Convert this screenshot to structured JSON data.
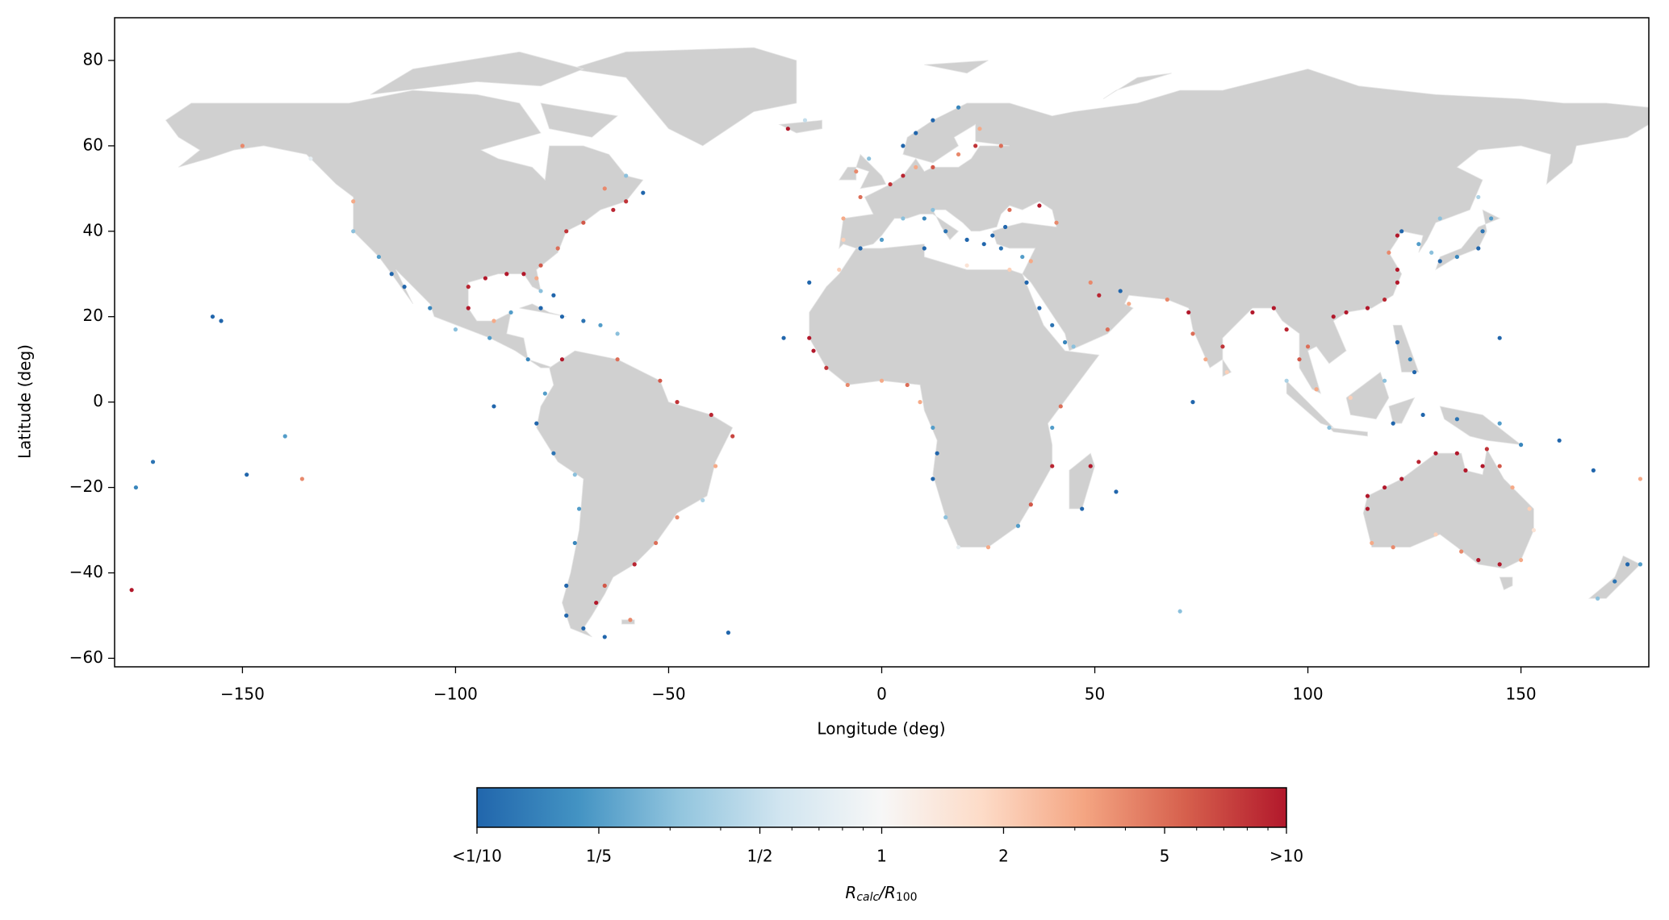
{
  "chart_data": {
    "type": "scatter",
    "xlabel": "Longitude (deg)",
    "ylabel": "Latitude (deg)",
    "xlim": [
      -180,
      180
    ],
    "ylim": [
      -62,
      90
    ],
    "xticks": [
      {
        "value": -150,
        "label": "−150"
      },
      {
        "value": -100,
        "label": "−100"
      },
      {
        "value": -50,
        "label": "−50"
      },
      0,
      50,
      100,
      150
    ],
    "yticks": [
      {
        "value": -60,
        "label": "−60"
      },
      {
        "value": -40,
        "label": "−40"
      },
      {
        "value": -20,
        "label": "−20"
      },
      0,
      20,
      40,
      60,
      80
    ],
    "x": [
      114,
      114,
      118,
      122,
      126,
      130,
      135,
      137,
      141,
      142,
      145,
      148,
      152,
      153,
      150,
      145,
      140,
      136,
      130,
      120,
      115,
      0,
      5,
      10,
      15,
      20,
      24,
      26,
      28,
      33,
      35,
      30,
      20,
      10,
      -5,
      12,
      29,
      37,
      30,
      41,
      -5,
      2,
      5,
      8,
      12,
      18,
      22,
      23,
      28,
      5,
      8,
      12,
      18,
      -3,
      -6,
      -9,
      -9,
      -70,
      -74,
      -76,
      -80,
      -81,
      -80,
      -63,
      -60,
      -56,
      -65,
      -84,
      -88,
      -93,
      -97,
      -97,
      -91,
      -87,
      -80,
      -75,
      -70,
      -66,
      -77,
      -62,
      -83,
      -124,
      -124,
      -118,
      -115,
      -112,
      -106,
      -100,
      -92,
      -134,
      -150,
      -157,
      -155,
      -91,
      -149,
      -175,
      -171,
      -140,
      -75,
      -62,
      -52,
      -48,
      -40,
      -35,
      -39,
      -42,
      -48,
      -53,
      -58,
      -65,
      -67,
      -70,
      -74,
      -74,
      -72,
      -71,
      -72,
      -77,
      -81,
      -79,
      -65,
      -59,
      -36,
      -17,
      -16,
      -13,
      -8,
      0,
      6,
      9,
      12,
      13,
      12,
      15,
      18,
      25,
      32,
      35,
      40,
      40,
      42,
      49,
      47,
      -17,
      -23,
      -10,
      34,
      37,
      40,
      43,
      45,
      53,
      58,
      56,
      51,
      49,
      67,
      72,
      73,
      76,
      80,
      81,
      87,
      92,
      95,
      98,
      100,
      102,
      95,
      105,
      106,
      109,
      114,
      118,
      121,
      121,
      119,
      121,
      122,
      126,
      129,
      131,
      135,
      140,
      141,
      143,
      131,
      140,
      121,
      124,
      125,
      118,
      110,
      120,
      127,
      135,
      145,
      150,
      159,
      167,
      178,
      168,
      172,
      175,
      178,
      -176,
      -136,
      70,
      73,
      55,
      145,
      -22,
      -18,
      -60
    ],
    "y": [
      -25,
      -22,
      -20,
      -18,
      -14,
      -12,
      -12,
      -16,
      -15,
      -11,
      -15,
      -20,
      -25,
      -30,
      -37,
      -38,
      -37,
      -35,
      -31,
      -34,
      -33,
      38,
      43,
      43,
      40,
      38,
      37,
      39,
      36,
      34,
      33,
      31,
      32,
      36,
      36,
      45,
      41,
      46,
      45,
      42,
      48,
      51,
      53,
      55,
      55,
      58,
      60,
      64,
      60,
      60,
      63,
      66,
      69,
      57,
      54,
      43,
      38,
      42,
      40,
      36,
      32,
      29,
      26,
      45,
      47,
      49,
      50,
      30,
      30,
      29,
      27,
      22,
      19,
      21,
      22,
      20,
      19,
      18,
      25,
      16,
      10,
      47,
      40,
      34,
      30,
      27,
      22,
      17,
      15,
      57,
      60,
      20,
      19,
      -1,
      -17,
      -20,
      -14,
      -8,
      10,
      10,
      5,
      0,
      -3,
      -8,
      -15,
      -23,
      -27,
      -33,
      -38,
      -43,
      -47,
      -53,
      -50,
      -43,
      -33,
      -25,
      -17,
      -12,
      -5,
      2,
      -55,
      -51,
      -54,
      15,
      12,
      8,
      4,
      5,
      4,
      0,
      -6,
      -12,
      -18,
      -27,
      -34,
      -34,
      -29,
      -24,
      -15,
      -6,
      -1,
      -15,
      -25,
      28,
      15,
      31,
      28,
      22,
      18,
      14,
      13,
      17,
      23,
      26,
      25,
      28,
      24,
      21,
      16,
      10,
      13,
      7,
      21,
      22,
      17,
      10,
      13,
      3,
      5,
      -6,
      20,
      21,
      22,
      24,
      28,
      31,
      35,
      39,
      40,
      37,
      35,
      33,
      34,
      36,
      40,
      43,
      43,
      48,
      14,
      10,
      7,
      5,
      1,
      -5,
      -3,
      -4,
      -5,
      -10,
      -9,
      -16,
      -18,
      -46,
      -42,
      -38,
      -38,
      -44,
      -18,
      -49,
      0,
      -21,
      15,
      64,
      66,
      53
    ],
    "values": [
      12,
      10,
      11,
      12,
      9,
      12,
      11,
      12,
      10,
      8,
      6,
      3,
      2,
      1.5,
      3,
      11,
      12,
      4,
      2,
      4,
      3,
      0.2,
      0.3,
      0.15,
      0.12,
      0.08,
      0.1,
      0.09,
      0.12,
      0.2,
      3,
      2,
      1.5,
      0.1,
      0.1,
      0.3,
      0.1,
      12,
      5,
      4,
      5,
      8,
      9,
      3,
      6,
      4,
      8,
      3,
      5,
      0.1,
      0.08,
      0.1,
      0.15,
      0.3,
      4,
      3,
      2,
      6,
      8,
      5,
      6,
      3,
      0.3,
      9,
      8,
      0.1,
      4,
      11,
      12,
      11,
      9,
      10,
      3,
      0.2,
      0.1,
      0.09,
      0.12,
      0.2,
      0.1,
      0.3,
      0.15,
      3,
      0.3,
      0.2,
      0.1,
      0.1,
      0.15,
      0.3,
      0.2,
      0.8,
      4,
      0.1,
      0.09,
      0.1,
      0.1,
      0.15,
      0.12,
      0.2,
      12,
      5,
      6,
      8,
      9,
      7,
      3,
      0.4,
      4,
      5,
      9,
      6,
      12,
      0.1,
      0.1,
      0.1,
      0.15,
      0.2,
      0.3,
      0.12,
      0.1,
      0.2,
      0.1,
      4,
      0.1,
      11,
      12,
      8,
      4,
      3,
      5,
      3,
      0.2,
      0.1,
      0.1,
      0.3,
      0.8,
      3,
      0.2,
      6,
      9,
      0.2,
      5,
      11,
      0.1,
      0.1,
      0.1,
      2,
      0.1,
      0.09,
      0.12,
      0.15,
      0.3,
      5,
      3,
      0.1,
      9,
      4,
      4,
      11,
      5,
      3,
      8,
      2,
      12,
      11,
      9,
      6,
      5,
      3,
      0.4,
      0.3,
      12,
      11,
      12,
      9,
      12,
      10,
      4,
      12,
      0.1,
      0.2,
      0.3,
      0.1,
      0.15,
      0.1,
      0.12,
      0.2,
      0.3,
      0.4,
      0.1,
      0.15,
      0.1,
      0.3,
      2,
      0.1,
      0.1,
      0.12,
      0.2,
      0.15,
      0.1,
      0.1,
      3,
      0.3,
      0.12,
      0.1,
      0.2,
      11,
      4,
      0.3,
      0.1,
      0.1,
      0.1,
      11,
      0.5,
      0.3
    ],
    "colormap": [
      "#2166ac",
      "#4393c3",
      "#92c5de",
      "#d1e5f0",
      "#f7f7f7",
      "#fddbc7",
      "#f4a582",
      "#d6604d",
      "#b2182b"
    ],
    "colorbar": {
      "lim": [
        0.1,
        10
      ],
      "log": true,
      "ticks": [
        {
          "value": 0.1,
          "label": "<1/10"
        },
        {
          "value": 0.2,
          "label": "1/5"
        },
        {
          "value": 0.5,
          "label": "1/2"
        },
        1,
        2,
        5,
        {
          "value": 10,
          "label": ">10"
        }
      ],
      "minor_ticks": [
        0.3,
        0.4,
        0.6,
        0.7,
        0.8,
        0.9,
        3,
        4,
        6,
        7,
        8,
        9
      ],
      "label_parts": [
        "R",
        "calc",
        "/R",
        "100"
      ]
    }
  }
}
